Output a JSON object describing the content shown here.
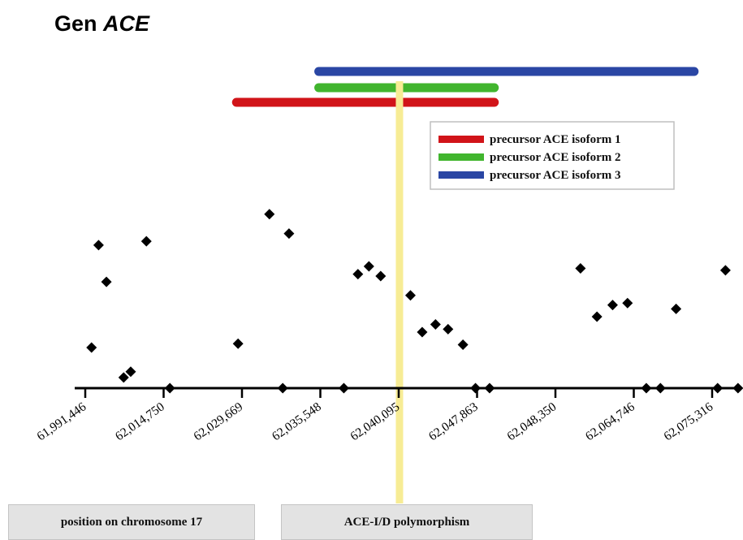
{
  "title": {
    "prefix": "Gen ",
    "gene": "ACE"
  },
  "colors": {
    "isoform1": "#d11419",
    "isoform2": "#41b52e",
    "isoform3": "#2a46a4",
    "marker": "#000000",
    "polymorphism_line": "#f7ec95"
  },
  "chart_data": {
    "type": "scatter",
    "xlabel": "position on chromosome 17",
    "ylabel": "",
    "grid": false,
    "legend_position": "top-right",
    "x_tick_labels": [
      "61,991,446",
      "62,014,750",
      "62,029,669",
      "62,035,548",
      "62,040,095",
      "62,047,863",
      "62,048,350",
      "62,064,746",
      "62,075,316"
    ],
    "xlim": [
      0,
      9
    ],
    "ylim": [
      0,
      10
    ],
    "series": [
      {
        "type": "scatter",
        "values": [
          [
            0.08,
            2.1
          ],
          [
            0.17,
            7.4
          ],
          [
            0.27,
            5.5
          ],
          [
            0.49,
            0.55
          ],
          [
            0.58,
            0.85
          ],
          [
            0.78,
            7.6
          ],
          [
            1.08,
            0.0
          ],
          [
            1.95,
            2.3
          ],
          [
            2.35,
            9.0
          ],
          [
            2.52,
            0.0
          ],
          [
            2.6,
            8.0
          ],
          [
            3.3,
            0.0
          ],
          [
            3.48,
            5.9
          ],
          [
            3.62,
            6.3
          ],
          [
            3.77,
            5.8
          ],
          [
            4.15,
            4.8
          ],
          [
            4.3,
            2.9
          ],
          [
            4.47,
            3.3
          ],
          [
            4.63,
            3.05
          ],
          [
            4.82,
            2.25
          ],
          [
            4.98,
            0.0
          ],
          [
            5.16,
            0.0
          ],
          [
            6.32,
            6.2
          ],
          [
            6.53,
            3.7
          ],
          [
            6.73,
            4.3
          ],
          [
            6.92,
            4.4
          ],
          [
            7.16,
            0.0
          ],
          [
            7.34,
            0.0
          ],
          [
            7.54,
            4.1
          ],
          [
            8.07,
            0.0
          ],
          [
            8.17,
            6.1
          ],
          [
            8.33,
            0.0
          ]
        ]
      }
    ],
    "isoforms": [
      {
        "name": "precursor ACE isoform 1",
        "start": 1.93,
        "end": 5.22
      },
      {
        "name": "precursor ACE isoform 2",
        "start": 2.98,
        "end": 5.22
      },
      {
        "name": "precursor ACE isoform 3",
        "start": 2.98,
        "end": 7.77
      }
    ],
    "annotation": {
      "label": "ACE-I/D polymorphism",
      "x": 4.01
    }
  }
}
